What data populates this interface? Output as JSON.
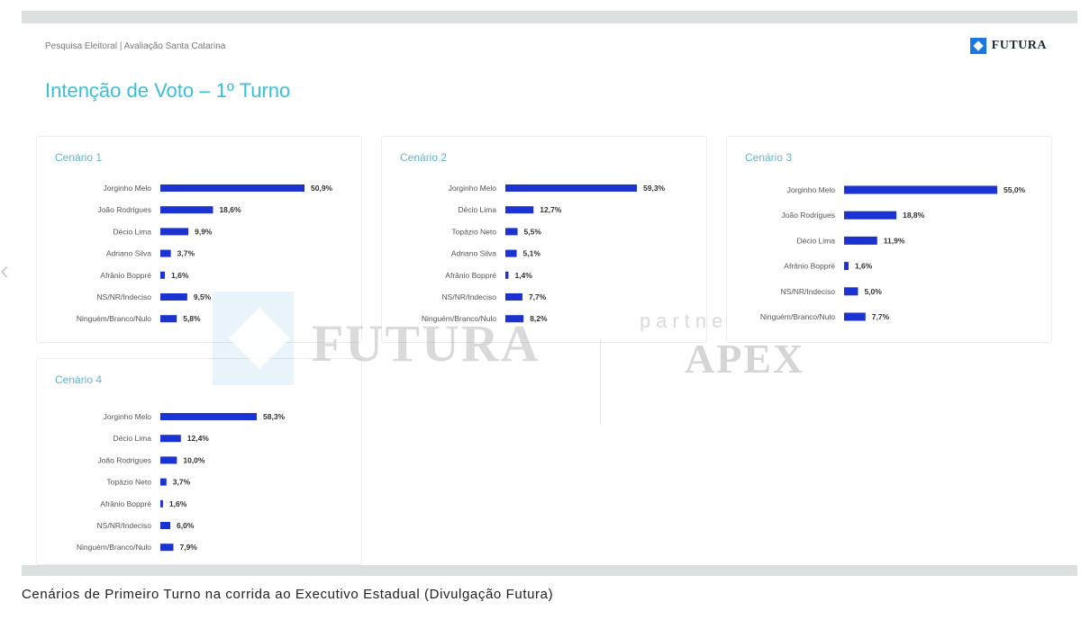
{
  "header": {
    "subtitle": "Pesquisa Eleitoral | Avaliação Santa Catarina",
    "title": "Intenção de Voto – 1º Turno",
    "logo_text": "FUTURA"
  },
  "watermark": {
    "futura": "FUTURA",
    "partner": "partne",
    "apex": "APEX"
  },
  "caption": "Cenários de Primeiro Turno na corrida ao Executivo Estadual (Divulgação Futura)",
  "colors": {
    "bar": "#1a33d1",
    "title": "#3cc0d8",
    "panel_title": "#5fb6cf"
  },
  "chart_data": [
    {
      "type": "bar",
      "orientation": "horizontal",
      "title": "Cenário 1",
      "categories": [
        "Jorginho Melo",
        "João Rodrigues",
        "Décio Lima",
        "Adriano Silva",
        "Afrânio Boppré",
        "NS/NR/Indeciso",
        "Ninguém/Branco/Nulo"
      ],
      "values": [
        50.9,
        18.6,
        9.9,
        3.7,
        1.6,
        9.5,
        5.8
      ],
      "labels": [
        "50,9%",
        "18,6%",
        "9,9%",
        "3,7%",
        "1,6%",
        "9,5%",
        "5,8%"
      ]
    },
    {
      "type": "bar",
      "orientation": "horizontal",
      "title": "Cenário 2",
      "categories": [
        "Jorginho Melo",
        "Décio Lima",
        "Topázio Neto",
        "Adriano Silva",
        "Afrânio Boppré",
        "NS/NR/Indeciso",
        "Ninguém/Branco/Nulo"
      ],
      "values": [
        59.3,
        12.7,
        5.5,
        5.1,
        1.4,
        7.7,
        8.2
      ],
      "labels": [
        "59,3%",
        "12,7%",
        "5,5%",
        "5,1%",
        "1,4%",
        "7,7%",
        "8,2%"
      ]
    },
    {
      "type": "bar",
      "orientation": "horizontal",
      "title": "Cenário 3",
      "categories": [
        "Jorginho Melo",
        "João Rodrigues",
        "Décio Lima",
        "Afrânio Boppré",
        "NS/NR/Indeciso",
        "Ninguém/Branco/Nulo"
      ],
      "values": [
        55.0,
        18.8,
        11.9,
        1.6,
        5.0,
        7.7
      ],
      "labels": [
        "55,0%",
        "18,8%",
        "11,9%",
        "1,6%",
        "5,0%",
        "7,7%"
      ]
    },
    {
      "type": "bar",
      "orientation": "horizontal",
      "title": "Cenário 4",
      "categories": [
        "Jorginho Melo",
        "Décio Lima",
        "João Rodrigues",
        "Topázio Neto",
        "Afrânio Boppré",
        "NS/NR/Indeciso",
        "Ninguém/Branco/Nulo"
      ],
      "values": [
        58.3,
        12.4,
        10.0,
        3.7,
        1.6,
        6.0,
        7.9
      ],
      "labels": [
        "58,3%",
        "12,4%",
        "10,0%",
        "3,7%",
        "1,6%",
        "6,0%",
        "7,9%"
      ]
    }
  ]
}
